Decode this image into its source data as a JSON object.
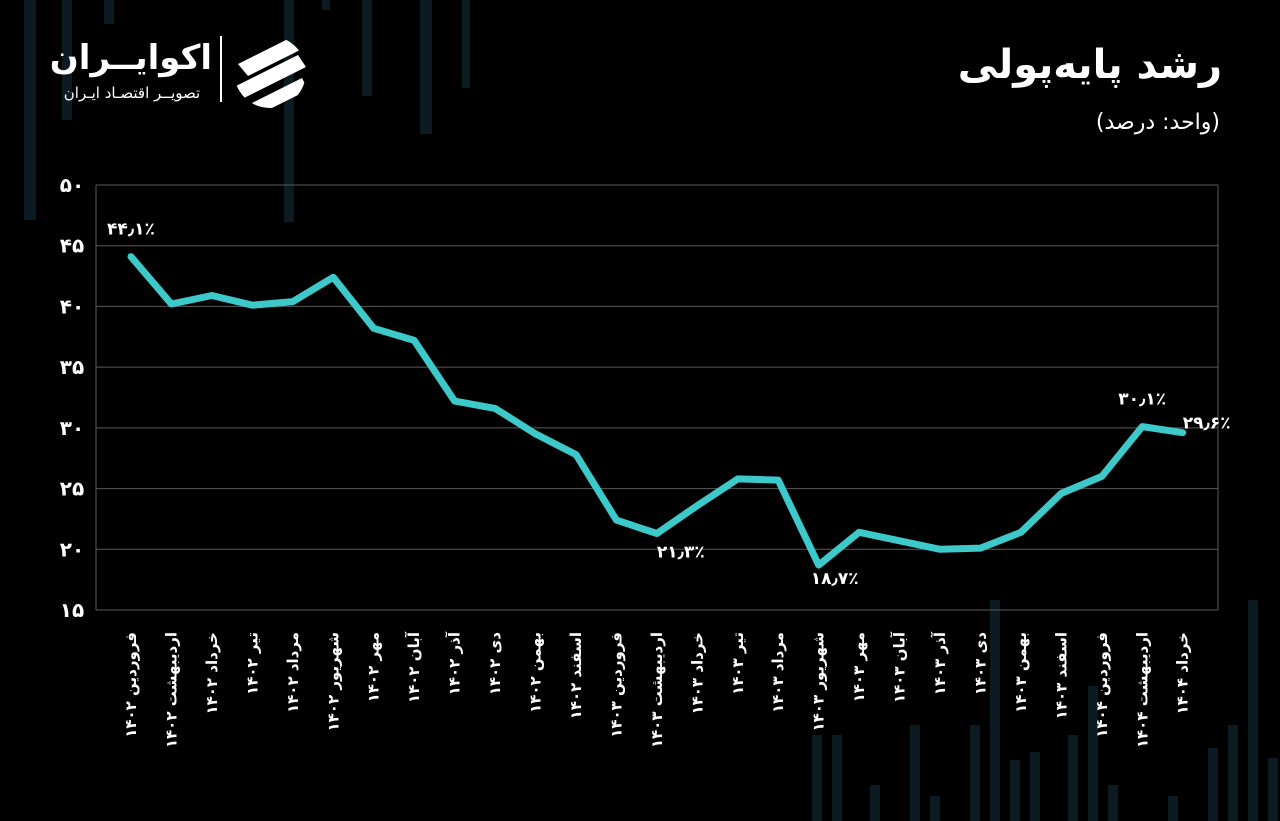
{
  "brand": {
    "name": "اکوایــران",
    "tagline": "تصویــر اقتصـاد ایـران"
  },
  "chart_data": {
    "type": "line",
    "title": "رشد پایه‌پولی",
    "subtitle": "(واحد: درصد)",
    "ylim": [
      15,
      50
    ],
    "y_ticks": [
      "۱۵",
      "۲۰",
      "۲۵",
      "۳۰",
      "۳۵",
      "۴۰",
      "۴۵",
      "۵۰"
    ],
    "y_tick_values": [
      15,
      20,
      25,
      30,
      35,
      40,
      45,
      50
    ],
    "grid": true,
    "colors": {
      "background": "#000000",
      "line": "#3dc9c9",
      "grid": "#5a5a5a",
      "text": "#ffffff"
    },
    "categories": [
      "فروردین ۱۴۰۲",
      "اردیبهشت ۱۴۰۲",
      "خرداد ۱۴۰۲",
      "تیر ۱۴۰۲",
      "مرداد ۱۴۰۲",
      "شهریور ۱۴۰۲",
      "مهر ۱۴۰۲",
      "آبان ۱۴۰۲",
      "آذر ۱۴۰۲",
      "دی ۱۴۰۲",
      "بهمن ۱۴۰۲",
      "اسفند ۱۴۰۲",
      "فروردین ۱۴۰۳",
      "اردیبهشت ۱۴۰۳",
      "خرداد ۱۴۰۳",
      "تیر ۱۴۰۳",
      "مرداد ۱۴۰۳",
      "شهریور ۱۴۰۳",
      "مهر ۱۴۰۳",
      "آبان ۱۴۰۳",
      "آذر ۱۴۰۳",
      "دی ۱۴۰۳",
      "بهمن ۱۴۰۳",
      "اسفند ۱۴۰۳",
      "فروردین ۱۴۰۴",
      "اردیبهشت ۱۴۰۴",
      "خرداد ۱۴۰۴"
    ],
    "values": [
      44.1,
      40.2,
      40.9,
      40.1,
      40.4,
      42.4,
      38.2,
      37.2,
      32.2,
      31.6,
      29.5,
      27.8,
      22.4,
      21.3,
      23.6,
      25.8,
      25.7,
      18.7,
      21.4,
      20.7,
      20.0,
      20.1,
      21.4,
      24.6,
      26.0,
      30.1,
      29.6
    ],
    "point_labels": [
      {
        "index": 0,
        "text": "۴۴٫۱٪",
        "position": "above"
      },
      {
        "index": 13,
        "text": "۲۱٫۳٪",
        "position": "below"
      },
      {
        "index": 17,
        "text": "۱۸٫۷٪",
        "position": "below-right"
      },
      {
        "index": 25,
        "text": "۳۰٫۱٪",
        "position": "above"
      },
      {
        "index": 26,
        "text": "۲۹٫۶٪",
        "position": "right"
      }
    ]
  }
}
